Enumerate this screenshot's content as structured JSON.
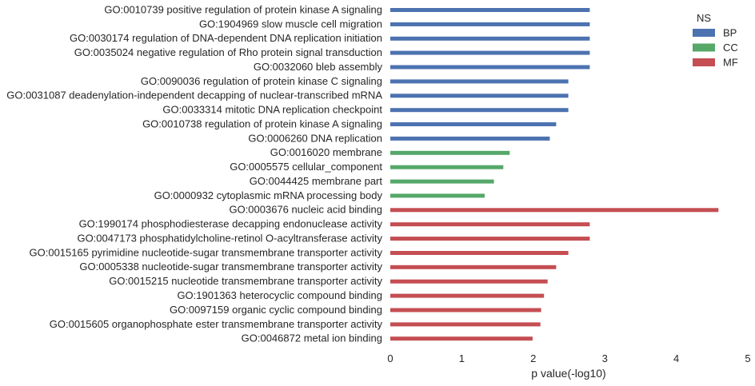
{
  "chart_data": {
    "type": "bar",
    "orientation": "horizontal",
    "xlabel": "p value(-log10)",
    "ylabel": "",
    "xlim": [
      0,
      5
    ],
    "xticks": [
      "0",
      "1",
      "2",
      "3",
      "4",
      "5"
    ],
    "grid": false,
    "legend": {
      "title": "NS",
      "placement": "top-right",
      "entries": [
        {
          "name": "BP",
          "color": "#4c72b0"
        },
        {
          "name": "CC",
          "color": "#55a868"
        },
        {
          "name": "MF",
          "color": "#c44e52"
        }
      ]
    },
    "categories": [
      "GO:0010739 positive regulation of protein kinase A signaling",
      "GO:1904969 slow muscle cell migration",
      "GO:0030174 regulation of DNA-dependent DNA replication initiation",
      "GO:0035024 negative regulation of Rho protein signal transduction",
      "GO:0032060 bleb assembly",
      "GO:0090036 regulation of protein kinase C signaling",
      "GO:0031087 deadenylation-independent decapping of nuclear-transcribed mRNA",
      "GO:0033314 mitotic DNA replication checkpoint",
      "GO:0010738 regulation of protein kinase A signaling",
      "GO:0006260 DNA replication",
      "GO:0016020 membrane",
      "GO:0005575 cellular_component",
      "GO:0044425 membrane part",
      "GO:0000932 cytoplasmic mRNA processing body",
      "GO:0003676 nucleic acid binding",
      "GO:1990174 phosphodiesterase decapping endonuclease activity",
      "GO:0047173 phosphatidylcholine-retinol O-acyltransferase activity",
      "GO:0015165 pyrimidine nucleotide-sugar transmembrane transporter activity",
      "GO:0005338 nucleotide-sugar transmembrane transporter activity",
      "GO:0015215 nucleotide transmembrane transporter activity",
      "GO:1901363 heterocyclic compound binding",
      "GO:0097159 organic cyclic compound binding",
      "GO:0015605 organophosphate ester transmembrane transporter activity",
      "GO:0046872 metal ion binding"
    ],
    "values": [
      2.79,
      2.79,
      2.79,
      2.79,
      2.79,
      2.49,
      2.49,
      2.49,
      2.32,
      2.23,
      1.67,
      1.58,
      1.45,
      1.32,
      4.59,
      2.79,
      2.79,
      2.49,
      2.32,
      2.2,
      2.15,
      2.11,
      2.1,
      1.99
    ],
    "groups": [
      "BP",
      "BP",
      "BP",
      "BP",
      "BP",
      "BP",
      "BP",
      "BP",
      "BP",
      "BP",
      "CC",
      "CC",
      "CC",
      "CC",
      "MF",
      "MF",
      "MF",
      "MF",
      "MF",
      "MF",
      "MF",
      "MF",
      "MF",
      "MF"
    ]
  }
}
